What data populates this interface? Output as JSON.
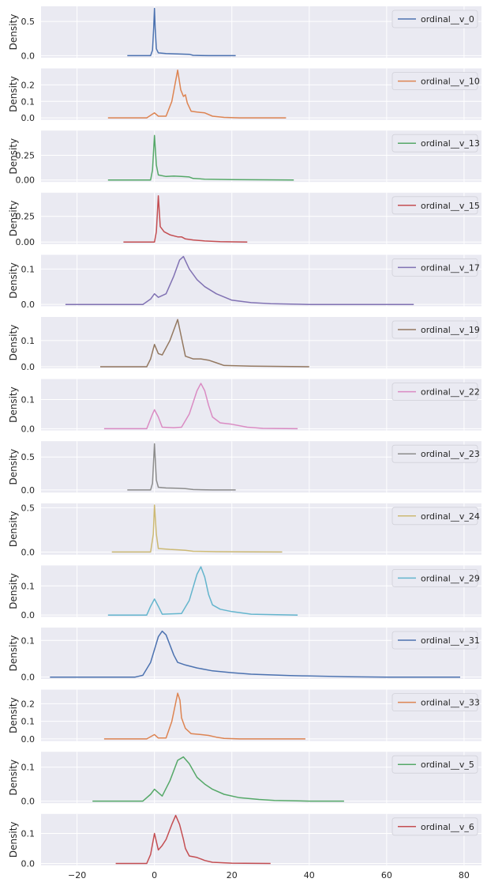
{
  "chart_data": {
    "type": "line",
    "chart_kind": "kde-subplots",
    "ylabel": "Density",
    "x_ticks": [
      "−20",
      "0",
      "20",
      "40",
      "60",
      "80"
    ],
    "x_tick_values": [
      -20,
      0,
      20,
      40,
      60,
      80
    ],
    "xlim": [
      -29.3,
      84.5
    ],
    "grid": true,
    "legend_position": "upper right",
    "background": "#eaeaf2",
    "panels": [
      {
        "series": "ordinal__v_0",
        "color": "#4c72b0",
        "y_ticks": [
          "0.0",
          "0.5"
        ],
        "y_tick_values": [
          0,
          0.5
        ],
        "ylim": [
          -0.03,
          0.72
        ],
        "points": [
          [
            -7,
            0
          ],
          [
            -1,
            0
          ],
          [
            -0.5,
            0.08
          ],
          [
            -0.2,
            0.4
          ],
          [
            0,
            0.69
          ],
          [
            0.2,
            0.4
          ],
          [
            0.5,
            0.1
          ],
          [
            1,
            0.04
          ],
          [
            3,
            0.03
          ],
          [
            6,
            0.025
          ],
          [
            9,
            0.02
          ],
          [
            10,
            0.005
          ],
          [
            14,
            0
          ],
          [
            21,
            0
          ]
        ]
      },
      {
        "series": "ordinal__v_10",
        "color": "#dd8452",
        "y_ticks": [
          "0.0",
          "0.1",
          "0.2"
        ],
        "y_tick_values": [
          0,
          0.1,
          0.2
        ],
        "ylim": [
          -0.012,
          0.3
        ],
        "points": [
          [
            -12,
            0
          ],
          [
            -2,
            0
          ],
          [
            0,
            0.03
          ],
          [
            1,
            0.01
          ],
          [
            3,
            0.01
          ],
          [
            4.5,
            0.1
          ],
          [
            6,
            0.29
          ],
          [
            6.8,
            0.17
          ],
          [
            7.5,
            0.13
          ],
          [
            8,
            0.14
          ],
          [
            8.5,
            0.09
          ],
          [
            9.5,
            0.04
          ],
          [
            11,
            0.035
          ],
          [
            13,
            0.03
          ],
          [
            15,
            0.01
          ],
          [
            18,
            0.003
          ],
          [
            22,
            0
          ],
          [
            34,
            0
          ]
        ]
      },
      {
        "series": "ordinal__v_13",
        "color": "#55a868",
        "y_ticks": [
          "0.00",
          "0.25"
        ],
        "y_tick_values": [
          0,
          0.25
        ],
        "ylim": [
          -0.02,
          0.5
        ],
        "points": [
          [
            -12,
            0
          ],
          [
            -1,
            0
          ],
          [
            -0.5,
            0.1
          ],
          [
            0,
            0.45
          ],
          [
            0.5,
            0.15
          ],
          [
            1,
            0.05
          ],
          [
            3,
            0.035
          ],
          [
            5,
            0.04
          ],
          [
            7,
            0.035
          ],
          [
            9,
            0.03
          ],
          [
            10,
            0.015
          ],
          [
            13,
            0.008
          ],
          [
            20,
            0.003
          ],
          [
            36,
            0
          ]
        ]
      },
      {
        "series": "ordinal__v_15",
        "color": "#c44e52",
        "y_ticks": [
          "0.00",
          "0.25"
        ],
        "y_tick_values": [
          0,
          0.25
        ],
        "ylim": [
          -0.02,
          0.48
        ],
        "points": [
          [
            -8,
            0
          ],
          [
            0,
            0
          ],
          [
            0.5,
            0.1
          ],
          [
            1,
            0.45
          ],
          [
            1.5,
            0.15
          ],
          [
            2.5,
            0.1
          ],
          [
            4,
            0.07
          ],
          [
            6,
            0.05
          ],
          [
            7,
            0.05
          ],
          [
            8,
            0.03
          ],
          [
            10,
            0.02
          ],
          [
            13,
            0.01
          ],
          [
            17,
            0.003
          ],
          [
            24,
            0
          ]
        ]
      },
      {
        "series": "ordinal__v_17",
        "color": "#8172b3",
        "y_ticks": [
          "0.0",
          "0.1"
        ],
        "y_tick_values": [
          0,
          0.1
        ],
        "ylim": [
          -0.005,
          0.14
        ],
        "points": [
          [
            -23,
            0
          ],
          [
            -3,
            0
          ],
          [
            -1,
            0.015
          ],
          [
            0,
            0.03
          ],
          [
            1,
            0.02
          ],
          [
            3,
            0.03
          ],
          [
            5,
            0.08
          ],
          [
            6.5,
            0.125
          ],
          [
            7.5,
            0.135
          ],
          [
            9,
            0.1
          ],
          [
            11,
            0.07
          ],
          [
            13,
            0.05
          ],
          [
            16,
            0.03
          ],
          [
            20,
            0.012
          ],
          [
            25,
            0.005
          ],
          [
            30,
            0.002
          ],
          [
            40,
            0
          ],
          [
            67,
            0
          ]
        ]
      },
      {
        "series": "ordinal__v_19",
        "color": "#937860",
        "y_ticks": [
          "0.0",
          "0.1"
        ],
        "y_tick_values": [
          0,
          0.1
        ],
        "ylim": [
          -0.006,
          0.19
        ],
        "points": [
          [
            -14,
            0
          ],
          [
            -2,
            0
          ],
          [
            -1,
            0.03
          ],
          [
            0,
            0.085
          ],
          [
            1,
            0.05
          ],
          [
            2,
            0.045
          ],
          [
            4,
            0.1
          ],
          [
            6,
            0.18
          ],
          [
            7,
            0.11
          ],
          [
            8,
            0.04
          ],
          [
            10,
            0.03
          ],
          [
            12,
            0.03
          ],
          [
            14,
            0.025
          ],
          [
            16,
            0.015
          ],
          [
            18,
            0.005
          ],
          [
            25,
            0.002
          ],
          [
            40,
            0
          ]
        ]
      },
      {
        "series": "ordinal__v_22",
        "color": "#da8bc3",
        "y_ticks": [
          "0.0",
          "0.1"
        ],
        "y_tick_values": [
          0,
          0.1
        ],
        "ylim": [
          -0.006,
          0.17
        ],
        "points": [
          [
            -13,
            0
          ],
          [
            -2,
            0
          ],
          [
            -0.5,
            0.05
          ],
          [
            0,
            0.065
          ],
          [
            1,
            0.04
          ],
          [
            2,
            0.005
          ],
          [
            5,
            0.003
          ],
          [
            7,
            0.005
          ],
          [
            9,
            0.05
          ],
          [
            11,
            0.13
          ],
          [
            12,
            0.155
          ],
          [
            13,
            0.13
          ],
          [
            14,
            0.08
          ],
          [
            15,
            0.04
          ],
          [
            17,
            0.02
          ],
          [
            20,
            0.015
          ],
          [
            24,
            0.005
          ],
          [
            28,
            0.001
          ],
          [
            37,
            0
          ]
        ]
      },
      {
        "series": "ordinal__v_23",
        "color": "#8c8c8c",
        "y_ticks": [
          "0.0",
          "0.5"
        ],
        "y_tick_values": [
          0,
          0.5
        ],
        "ylim": [
          -0.04,
          0.74
        ],
        "points": [
          [
            -7,
            0
          ],
          [
            -1,
            0
          ],
          [
            -0.5,
            0.1
          ],
          [
            0,
            0.7
          ],
          [
            0.5,
            0.15
          ],
          [
            1,
            0.04
          ],
          [
            3,
            0.03
          ],
          [
            6,
            0.025
          ],
          [
            8,
            0.02
          ],
          [
            10,
            0.005
          ],
          [
            15,
            0
          ],
          [
            21,
            0
          ]
        ]
      },
      {
        "series": "ordinal__v_24",
        "color": "#ccb974",
        "y_ticks": [
          "0.0",
          "0.5"
        ],
        "y_tick_values": [
          0,
          0.5
        ],
        "ylim": [
          -0.03,
          0.55
        ],
        "points": [
          [
            -11,
            0
          ],
          [
            -1,
            0
          ],
          [
            -0.3,
            0.2
          ],
          [
            0,
            0.53
          ],
          [
            0.5,
            0.2
          ],
          [
            1,
            0.04
          ],
          [
            4,
            0.03
          ],
          [
            6,
            0.025
          ],
          [
            8,
            0.02
          ],
          [
            10,
            0.008
          ],
          [
            16,
            0.004
          ],
          [
            25,
            0.002
          ],
          [
            33,
            0
          ]
        ]
      },
      {
        "series": "ordinal__v_29",
        "color": "#64b5cd",
        "y_ticks": [
          "0.0",
          "0.1"
        ],
        "y_tick_values": [
          0,
          0.1
        ],
        "ylim": [
          -0.006,
          0.17
        ],
        "points": [
          [
            -12,
            0
          ],
          [
            -2,
            0
          ],
          [
            -1,
            0.03
          ],
          [
            0,
            0.055
          ],
          [
            1,
            0.03
          ],
          [
            2,
            0.003
          ],
          [
            7,
            0.005
          ],
          [
            9,
            0.05
          ],
          [
            11,
            0.14
          ],
          [
            12,
            0.165
          ],
          [
            13,
            0.13
          ],
          [
            14,
            0.07
          ],
          [
            15,
            0.035
          ],
          [
            17,
            0.02
          ],
          [
            20,
            0.012
          ],
          [
            25,
            0.003
          ],
          [
            37,
            0
          ]
        ]
      },
      {
        "series": "ordinal__v_31",
        "color": "#4c72b0",
        "y_ticks": [
          "0.0",
          "0.1"
        ],
        "y_tick_values": [
          0,
          0.1
        ],
        "ylim": [
          -0.005,
          0.135
        ],
        "points": [
          [
            -27,
            0
          ],
          [
            -5,
            0
          ],
          [
            -3,
            0.005
          ],
          [
            -1,
            0.04
          ],
          [
            1,
            0.11
          ],
          [
            2,
            0.125
          ],
          [
            3,
            0.115
          ],
          [
            5,
            0.06
          ],
          [
            6,
            0.04
          ],
          [
            8,
            0.033
          ],
          [
            11,
            0.025
          ],
          [
            15,
            0.017
          ],
          [
            20,
            0.012
          ],
          [
            25,
            0.008
          ],
          [
            30,
            0.006
          ],
          [
            35,
            0.004
          ],
          [
            40,
            0.003
          ],
          [
            50,
            0.001
          ],
          [
            60,
            0
          ],
          [
            79,
            0
          ]
        ]
      },
      {
        "series": "ordinal__v_33",
        "color": "#dd8452",
        "y_ticks": [
          "0.0",
          "0.1",
          "0.2"
        ],
        "y_tick_values": [
          0,
          0.1,
          0.2
        ],
        "ylim": [
          -0.012,
          0.28
        ],
        "points": [
          [
            -13,
            0
          ],
          [
            -2,
            0
          ],
          [
            0,
            0.025
          ],
          [
            1,
            0.005
          ],
          [
            3,
            0.005
          ],
          [
            4.5,
            0.1
          ],
          [
            6,
            0.26
          ],
          [
            6.6,
            0.22
          ],
          [
            7,
            0.12
          ],
          [
            7.5,
            0.09
          ],
          [
            8,
            0.06
          ],
          [
            9.5,
            0.03
          ],
          [
            12,
            0.025
          ],
          [
            14,
            0.02
          ],
          [
            16,
            0.01
          ],
          [
            18,
            0.003
          ],
          [
            22,
            0
          ],
          [
            39,
            0
          ]
        ]
      },
      {
        "series": "ordinal__v_5",
        "color": "#55a868",
        "y_ticks": [
          "0.0",
          "0.1"
        ],
        "y_tick_values": [
          0,
          0.1
        ],
        "ylim": [
          -0.006,
          0.145
        ],
        "points": [
          [
            -16,
            0
          ],
          [
            -3,
            0
          ],
          [
            -1,
            0.02
          ],
          [
            0,
            0.035
          ],
          [
            1,
            0.025
          ],
          [
            2,
            0.015
          ],
          [
            4,
            0.06
          ],
          [
            6,
            0.12
          ],
          [
            7.5,
            0.13
          ],
          [
            9,
            0.11
          ],
          [
            11,
            0.07
          ],
          [
            13,
            0.05
          ],
          [
            15,
            0.035
          ],
          [
            18,
            0.02
          ],
          [
            22,
            0.01
          ],
          [
            27,
            0.005
          ],
          [
            31,
            0.002
          ],
          [
            40,
            0
          ],
          [
            49,
            0
          ]
        ]
      },
      {
        "series": "ordinal__v_6",
        "color": "#c44e52",
        "y_ticks": [
          "0.0",
          "0.1"
        ],
        "y_tick_values": [
          0,
          0.1
        ],
        "ylim": [
          -0.006,
          0.165
        ],
        "points": [
          [
            -10,
            0
          ],
          [
            -2,
            0
          ],
          [
            -1,
            0.03
          ],
          [
            0,
            0.1
          ],
          [
            1,
            0.045
          ],
          [
            2,
            0.06
          ],
          [
            3,
            0.08
          ],
          [
            4.5,
            0.13
          ],
          [
            5.5,
            0.16
          ],
          [
            6.5,
            0.13
          ],
          [
            7.5,
            0.08
          ],
          [
            8,
            0.05
          ],
          [
            9,
            0.025
          ],
          [
            11,
            0.02
          ],
          [
            13,
            0.01
          ],
          [
            15,
            0.004
          ],
          [
            20,
            0.001
          ],
          [
            30,
            0
          ]
        ]
      }
    ]
  }
}
